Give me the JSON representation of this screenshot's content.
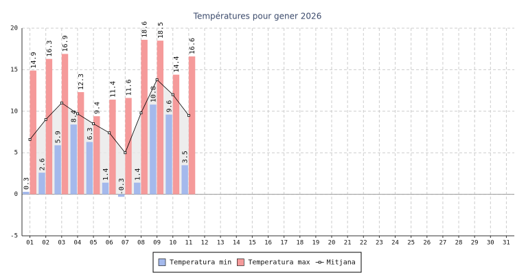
{
  "chart_data": {
    "type": "bar",
    "title": "Températures pour gener 2026",
    "categories": [
      "01",
      "02",
      "03",
      "04",
      "05",
      "06",
      "07",
      "08",
      "09",
      "10",
      "11",
      "12",
      "13",
      "14",
      "15",
      "16",
      "17",
      "18",
      "19",
      "20",
      "21",
      "22",
      "23",
      "24",
      "25",
      "26",
      "27",
      "28",
      "29",
      "30",
      "31"
    ],
    "series": [
      {
        "name": "Temperatura min",
        "color": "#a4b9ec",
        "values": [
          0.3,
          2.6,
          5.9,
          8.4,
          6.3,
          1.4,
          -0.3,
          1.4,
          10.8,
          9.6,
          3.5,
          null,
          null,
          null,
          null,
          null,
          null,
          null,
          null,
          null,
          null,
          null,
          null,
          null,
          null,
          null,
          null,
          null,
          null,
          null,
          null
        ]
      },
      {
        "name": "Temperatura max",
        "color": "#f59a9a",
        "values": [
          14.9,
          16.3,
          16.9,
          12.3,
          9.4,
          11.4,
          11.6,
          18.6,
          18.5,
          14.4,
          16.6,
          null,
          null,
          null,
          null,
          null,
          null,
          null,
          null,
          null,
          null,
          null,
          null,
          null,
          null,
          null,
          null,
          null,
          null,
          null,
          null
        ]
      },
      {
        "name": "Mitjana",
        "type": "line",
        "color": "#000000",
        "values": [
          6.6,
          9.0,
          11.0,
          9.7,
          8.5,
          7.4,
          5.0,
          9.8,
          13.8,
          12.0,
          9.5,
          null,
          null,
          null,
          null,
          null,
          null,
          null,
          null,
          null,
          null,
          null,
          null,
          null,
          null,
          null,
          null,
          null,
          null,
          null,
          null
        ]
      }
    ],
    "ylim": [
      -5,
      20
    ],
    "yticks": [
      -5,
      0,
      5,
      10,
      15,
      20
    ],
    "grid": true,
    "legend": "bottom"
  }
}
